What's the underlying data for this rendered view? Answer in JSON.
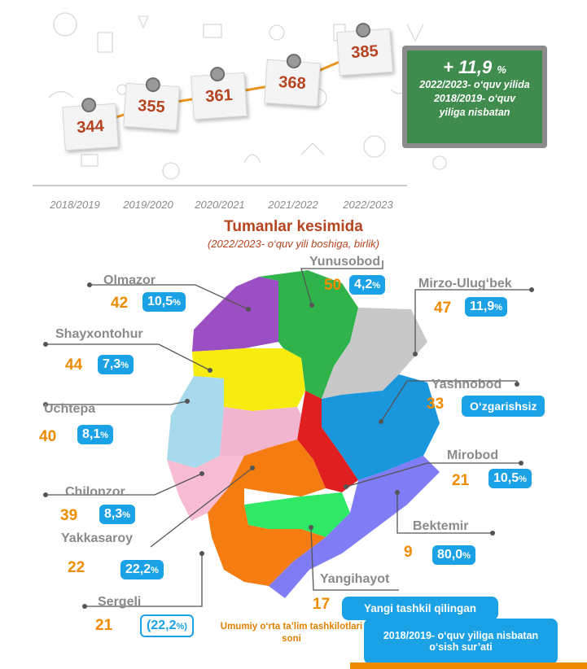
{
  "chart_data": [
    {
      "type": "line",
      "categories": [
        "2018/2019",
        "2019/2020",
        "2020/2021",
        "2021/2022",
        "2022/2023"
      ],
      "values": [
        344,
        355,
        361,
        368,
        385
      ]
    },
    {
      "type": "table",
      "title": "Tumanlar kesimida",
      "subtitle": "(2022/2023- o‘quv yili boshiga, birlik)",
      "districts": [
        {
          "name": "Olmazor",
          "value": 42,
          "growth": "10,5%"
        },
        {
          "name": "Yunusobod",
          "value": 50,
          "growth": "4,2%"
        },
        {
          "name": "Mirzo-Ulug‘bek",
          "value": 47,
          "growth": "11,9%"
        },
        {
          "name": "Shayxontohur",
          "value": 44,
          "growth": "7,3%"
        },
        {
          "name": "Yashnobod",
          "value": 33,
          "growth": "O‘zgarishsiz"
        },
        {
          "name": "Uchtepa",
          "value": 40,
          "growth": "8,1%"
        },
        {
          "name": "Mirobod",
          "value": 21,
          "growth": "10,5%"
        },
        {
          "name": "Chilonzor",
          "value": 39,
          "growth": "8,3%"
        },
        {
          "name": "Yakkasaroy",
          "value": 22,
          "growth": "22,2%"
        },
        {
          "name": "Bektemir",
          "value": 9,
          "growth": "80,0%"
        },
        {
          "name": "Yangihayot",
          "value": 17,
          "growth": "Yangi tashkil qilingan"
        },
        {
          "name": "Sergeli",
          "value": 21,
          "growth": "(22,2%)"
        }
      ]
    }
  ],
  "board": {
    "headline_sign": "+",
    "headline_value": "11,9",
    "headline_unit": "%",
    "line1": "2022/2023- o‘quv yilida",
    "line2": "2018/2019- o‘quv",
    "line3": "yiliga nisbatan"
  },
  "legend": {
    "count_label": "Umumiy o‘rta ta’lim tashkilotlari soni",
    "growth_label": "2018/2019- o‘quv yiliga nisbatan o‘sish sur’ati"
  },
  "colors": {
    "accent_orange": "#f08b00",
    "title_red": "#b5441f",
    "badge_blue": "#1aa1e6",
    "board_green": "#3f8c4e",
    "line_orange": "#e8961e"
  }
}
